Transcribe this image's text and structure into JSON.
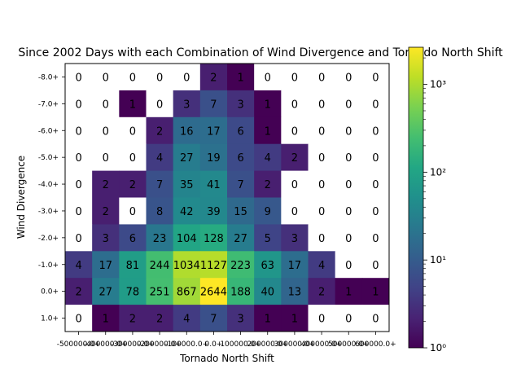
{
  "chart_data": {
    "type": "heatmap",
    "title": "Since 2002 Days with each Combination of Wind Divergence and Tornado North Shift",
    "xlabel": "Tornado North Shift",
    "ylabel": "Wind Divergence",
    "x_categories": [
      "-500000.0+",
      "-400000.0+",
      "-300000.0+",
      "-200000.0+",
      "-100000.0+",
      "0.0+",
      "100000.0+",
      "200000.0+",
      "300000.0+",
      "400000.0+",
      "500000.0+",
      "600000.0+"
    ],
    "y_categories": [
      "-8.0+",
      "-7.0+",
      "-6.0+",
      "-5.0+",
      "-4.0+",
      "-3.0+",
      "-2.0+",
      "-1.0+",
      "0.0+",
      "1.0+"
    ],
    "values": [
      [
        0,
        0,
        0,
        0,
        0,
        2,
        1,
        0,
        0,
        0,
        0,
        0
      ],
      [
        0,
        0,
        1,
        0,
        3,
        7,
        3,
        1,
        0,
        0,
        0,
        0
      ],
      [
        0,
        0,
        0,
        2,
        16,
        17,
        6,
        1,
        0,
        0,
        0,
        0
      ],
      [
        0,
        0,
        0,
        4,
        27,
        19,
        6,
        4,
        2,
        0,
        0,
        0
      ],
      [
        0,
        2,
        2,
        7,
        35,
        41,
        7,
        2,
        0,
        0,
        0,
        0
      ],
      [
        0,
        2,
        0,
        8,
        42,
        39,
        15,
        9,
        0,
        0,
        0,
        0
      ],
      [
        0,
        3,
        6,
        23,
        104,
        128,
        27,
        5,
        3,
        0,
        0,
        0
      ],
      [
        4,
        17,
        81,
        244,
        1034,
        1127,
        223,
        63,
        17,
        4,
        0,
        0
      ],
      [
        2,
        27,
        78,
        251,
        867,
        2644,
        188,
        40,
        13,
        2,
        1,
        1
      ],
      [
        0,
        1,
        2,
        2,
        4,
        7,
        3,
        1,
        1,
        0,
        0,
        0
      ]
    ],
    "colorbar": {
      "scale": "log",
      "range": [
        1,
        2644
      ],
      "colormap": "viridis",
      "tick_labels": [
        "10⁰",
        "10¹",
        "10²",
        "10³"
      ],
      "tick_values": [
        1,
        10,
        100,
        1000
      ]
    },
    "zero_color": "#ffffff"
  }
}
